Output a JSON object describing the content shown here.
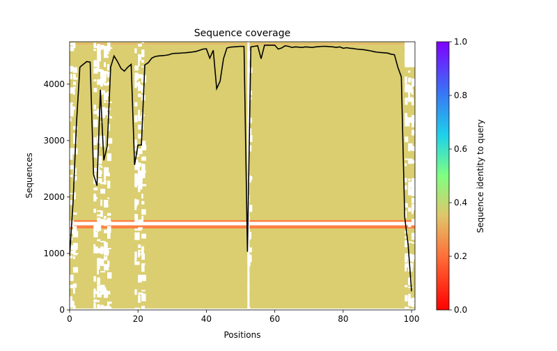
{
  "chart_data": {
    "type": "heatmap",
    "title": "Sequence coverage",
    "xlabel": "Positions",
    "ylabel": "Sequences",
    "xlim": [
      0,
      101
    ],
    "ylim": [
      0,
      4750
    ],
    "xticks": [
      0,
      20,
      40,
      60,
      80,
      100
    ],
    "yticks": [
      0,
      1000,
      2000,
      3000,
      4000
    ],
    "colorbar": {
      "label": "Sequence identity to query",
      "colormap": "rainbow_r",
      "range": [
        0,
        1
      ],
      "ticks": [
        "0.0",
        "0.2",
        "0.4",
        "0.6",
        "0.8",
        "1.0"
      ]
    },
    "coverage_line": {
      "color": "#000000",
      "x": [
        0,
        1,
        2,
        3,
        4,
        5,
        6,
        7,
        8,
        9,
        10,
        11,
        12,
        13,
        14,
        15,
        16,
        17,
        18,
        19,
        20,
        21,
        22,
        23,
        24,
        25,
        26,
        27,
        28,
        29,
        30,
        31,
        32,
        33,
        34,
        35,
        36,
        37,
        38,
        39,
        40,
        41,
        42,
        43,
        44,
        45,
        46,
        47,
        48,
        49,
        50,
        51,
        52,
        53,
        54,
        55,
        56,
        57,
        58,
        59,
        60,
        61,
        62,
        63,
        64,
        65,
        66,
        67,
        68,
        69,
        70,
        71,
        72,
        73,
        74,
        75,
        76,
        77,
        78,
        79,
        80,
        81,
        82,
        83,
        84,
        85,
        86,
        87,
        88,
        89,
        90,
        91,
        92,
        93,
        94,
        95,
        96,
        97,
        98,
        99,
        100
      ],
      "y": [
        950,
        1900,
        3300,
        4300,
        4350,
        4400,
        4390,
        2400,
        2200,
        3900,
        2650,
        2900,
        4300,
        4500,
        4400,
        4280,
        4230,
        4300,
        4350,
        2570,
        2920,
        2920,
        4340,
        4380,
        4460,
        4490,
        4500,
        4505,
        4510,
        4520,
        4540,
        4545,
        4548,
        4552,
        4556,
        4562,
        4570,
        4580,
        4600,
        4620,
        4625,
        4460,
        4600,
        3920,
        4050,
        4450,
        4640,
        4655,
        4660,
        4665,
        4670,
        4668,
        1030,
        4660,
        4670,
        4680,
        4450,
        4690,
        4690,
        4690,
        4690,
        4620,
        4640,
        4680,
        4670,
        4650,
        4660,
        4655,
        4650,
        4660,
        4655,
        4650,
        4660,
        4665,
        4670,
        4668,
        4665,
        4660,
        4650,
        4660,
        4635,
        4645,
        4635,
        4630,
        4620,
        4615,
        4610,
        4600,
        4590,
        4575,
        4565,
        4560,
        4555,
        4550,
        4530,
        4520,
        4300,
        4130,
        1640,
        1150,
        330
      ]
    }
  }
}
